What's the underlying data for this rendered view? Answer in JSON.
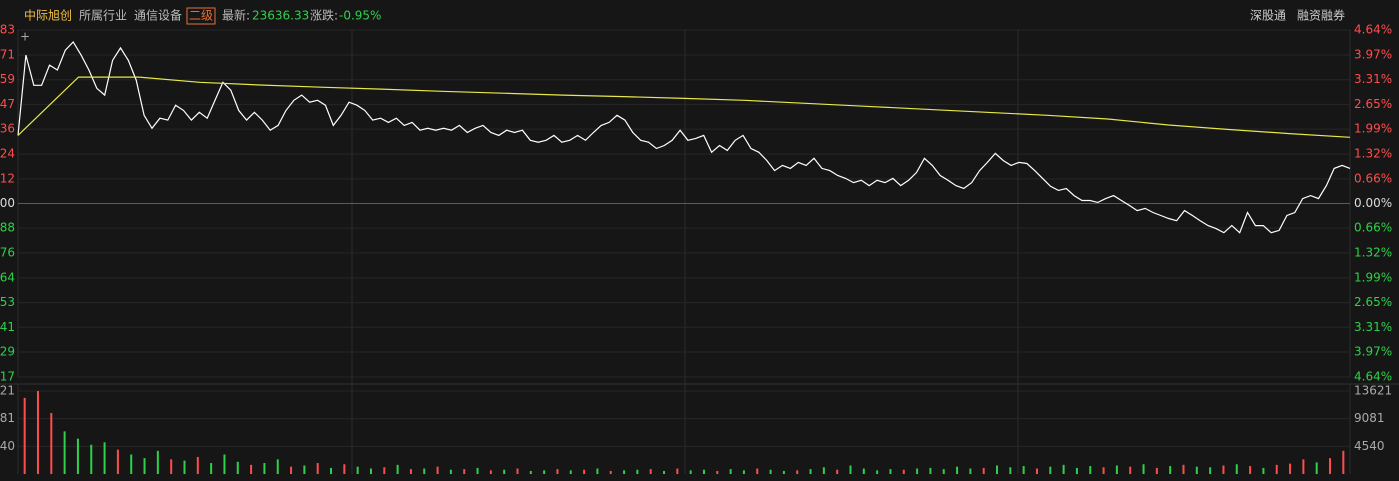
{
  "header": {
    "stock": "中际旭创",
    "industry_label": "所属行业",
    "industry": "通信设备",
    "level": "二级",
    "latest_label": "最新:",
    "latest": 23636.33,
    "change_label": "涨跌:",
    "change": "-0.95%",
    "links": [
      "深股通",
      "融资融券"
    ]
  },
  "chart_data": {
    "type": "line",
    "ylim": [
      -4.64,
      4.64
    ],
    "yticks": [
      {
        "value": 4.64,
        "label": "4.64%"
      },
      {
        "value": 3.97,
        "label": "3.97%"
      },
      {
        "value": 3.31,
        "label": "3.31%"
      },
      {
        "value": 2.65,
        "label": "2.65%"
      },
      {
        "value": 1.99,
        "label": "1.99%"
      },
      {
        "value": 1.32,
        "label": "1.32%"
      },
      {
        "value": 0.66,
        "label": "0.66%"
      },
      {
        "value": 0,
        "label": "0.00%"
      },
      {
        "value": -0.66,
        "label": "0.66%"
      },
      {
        "value": -1.32,
        "label": "1.32%"
      },
      {
        "value": -1.99,
        "label": "1.99%"
      },
      {
        "value": -2.65,
        "label": "2.65%"
      },
      {
        "value": -3.31,
        "label": "3.31%"
      },
      {
        "value": -3.97,
        "label": "3.97%"
      },
      {
        "value": -4.64,
        "label": "4.64%"
      }
    ],
    "left_axis_labels": [
      ".83",
      ".71",
      ".59",
      ".47",
      ".36",
      ".24",
      ".12",
      ".00",
      ".88",
      ".76",
      ".64",
      ".53",
      ".41",
      ".29",
      ".17"
    ],
    "up_color": "#ff4d4d",
    "down_color": "#2fd04a",
    "series": [
      {
        "color": "#ffffff",
        "values": [
          1.82,
          3.97,
          3.16,
          3.16,
          3.7,
          3.57,
          4.1,
          4.32,
          3.97,
          3.57,
          3.08,
          2.9,
          3.83,
          4.16,
          3.83,
          3.3,
          2.36,
          2.01,
          2.28,
          2.23,
          2.63,
          2.49,
          2.23,
          2.44,
          2.28,
          2.76,
          3.24,
          3.03,
          2.49,
          2.23,
          2.44,
          2.23,
          1.96,
          2.09,
          2.49,
          2.76,
          2.9,
          2.71,
          2.76,
          2.63,
          2.09,
          2.36,
          2.71,
          2.63,
          2.49,
          2.23,
          2.28,
          2.17,
          2.28,
          2.09,
          2.17,
          1.96,
          2.01,
          1.96,
          2.01,
          1.96,
          2.09,
          1.9,
          2.01,
          2.09,
          1.9,
          1.82,
          1.96,
          1.9,
          1.96,
          1.69,
          1.64,
          1.69,
          1.82,
          1.64,
          1.69,
          1.82,
          1.69,
          1.9,
          2.09,
          2.17,
          2.36,
          2.23,
          1.9,
          1.69,
          1.64,
          1.47,
          1.55,
          1.69,
          1.96,
          1.69,
          1.74,
          1.82,
          1.37,
          1.55,
          1.42,
          1.69,
          1.82,
          1.47,
          1.37,
          1.15,
          0.88,
          1.02,
          0.94,
          1.1,
          1.02,
          1.21,
          0.94,
          0.88,
          0.75,
          0.67,
          0.56,
          0.62,
          0.48,
          0.62,
          0.56,
          0.67,
          0.48,
          0.62,
          0.83,
          1.21,
          1.02,
          0.75,
          0.62,
          0.48,
          0.4,
          0.56,
          0.88,
          1.1,
          1.34,
          1.15,
          1.02,
          1.1,
          1.07,
          0.88,
          0.67,
          0.46,
          0.35,
          0.4,
          0.21,
          0.08,
          0.08,
          0.03,
          0.13,
          0.21,
          0.08,
          -0.05,
          -0.19,
          -0.13,
          -0.24,
          -0.32,
          -0.4,
          -0.46,
          -0.19,
          -0.32,
          -0.46,
          -0.59,
          -0.67,
          -0.78,
          -0.59,
          -0.78,
          -0.24,
          -0.59,
          -0.59,
          -0.78,
          -0.72,
          -0.32,
          -0.24,
          0.13,
          0.21,
          0.13,
          0.48,
          0.94,
          1.02,
          0.94
        ]
      },
      {
        "color": "#e8e84a",
        "values": [
          1.82,
          3.38,
          3.38,
          3.24,
          3.17,
          3.11,
          3.06,
          3.0,
          2.95,
          2.9,
          2.86,
          2.81,
          2.76,
          2.68,
          2.6,
          2.52,
          2.44,
          2.36,
          2.26,
          2.1,
          1.98,
          1.87,
          1.77
        ]
      }
    ],
    "volume": {
      "ylim": [
        0,
        13621
      ],
      "yticks": [
        4540,
        9081,
        13621
      ],
      "left_labels": [
        "540",
        "9081",
        "621"
      ],
      "values": [
        12500,
        13621,
        10000,
        7000,
        5800,
        4800,
        5200,
        4000,
        3200,
        2600,
        3800,
        2400,
        2200,
        2800,
        1800,
        3200,
        2000,
        1500,
        1800,
        2400,
        1200,
        1400,
        1800,
        1000,
        1600,
        1200,
        900,
        1100,
        1500,
        800,
        900,
        1200,
        700,
        800,
        1000,
        600,
        700,
        900,
        500,
        600,
        800,
        600,
        700,
        900,
        500,
        600,
        700,
        800,
        500,
        900,
        600,
        700,
        500,
        800,
        600,
        900,
        700,
        500,
        600,
        800,
        1100,
        700,
        1400,
        900,
        600,
        800,
        700,
        900,
        1000,
        800,
        1200,
        900,
        1000,
        1400,
        1100,
        1300,
        900,
        1200,
        1500,
        1000,
        1300,
        1100,
        1400,
        1200,
        1600,
        1000,
        1300,
        1500,
        1200,
        1100,
        1400,
        1600,
        1300,
        1000,
        1500,
        1700,
        2400,
        1900,
        2600,
        3800
      ],
      "direction": "rrrggggrgggrgrgggrggrgrgrggrgrgrgrgrgrggrgrgrggrgrggrggrggrggrggggrgggggrgggrggggrgrgrgrggrgrgrrrgrr"
    }
  }
}
